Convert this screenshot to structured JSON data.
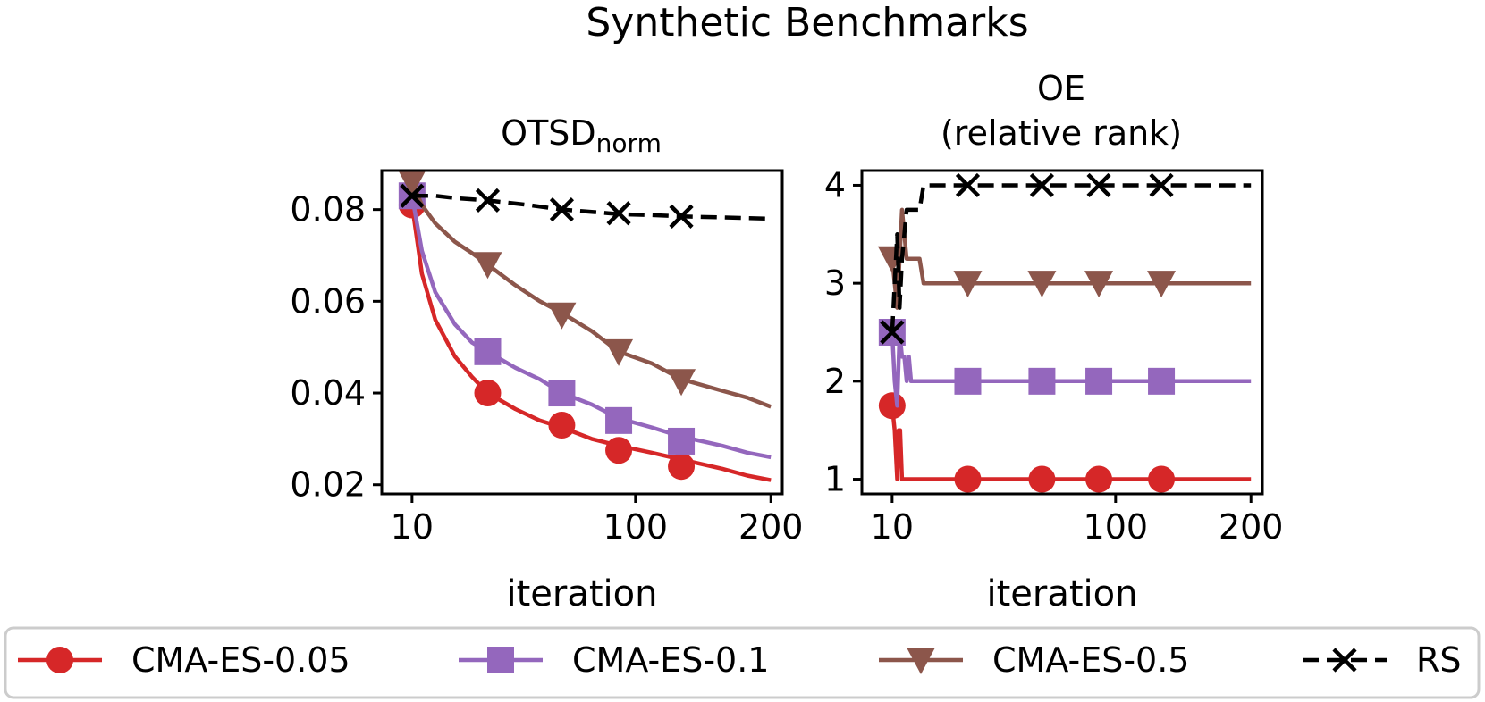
{
  "figure": {
    "title": "Synthetic Benchmarks"
  },
  "colors": {
    "CMA-ES-0.05": "#d62728",
    "CMA-ES-0.1": "#9467bd",
    "CMA-ES-0.5": "#8c564b",
    "RS": "#000000"
  },
  "legend": [
    {
      "label": "CMA-ES-0.05",
      "marker": "circle",
      "color": "#d62728",
      "dash": "solid"
    },
    {
      "label": "CMA-ES-0.1",
      "marker": "square",
      "color": "#9467bd",
      "dash": "solid"
    },
    {
      "label": "CMA-ES-0.5",
      "marker": "triangle-down",
      "color": "#8c564b",
      "dash": "solid"
    },
    {
      "label": "RS",
      "marker": "x",
      "color": "#000000",
      "dash": "dashed"
    }
  ],
  "chart_data": [
    {
      "type": "line",
      "title": "OTSD",
      "title_subscript": "norm",
      "xlabel": "iteration",
      "ylabel": "",
      "xscale": "sqrt",
      "xlim": [
        5,
        210
      ],
      "ylim": [
        0.018,
        0.0885
      ],
      "xticks": [
        10,
        100,
        200
      ],
      "xtick_labels": [
        "10",
        "100",
        "200"
      ],
      "yticks": [
        0.02,
        0.04,
        0.06,
        0.08
      ],
      "ytick_labels": [
        "0.02",
        "0.04",
        "0.06",
        "0.08"
      ],
      "series": [
        {
          "name": "CMA-ES-0.05",
          "x": [
            10,
            12,
            15,
            20,
            25,
            30,
            40,
            50,
            60,
            75,
            90,
            110,
            130,
            160,
            180,
            200
          ],
          "y": [
            0.081,
            0.066,
            0.056,
            0.048,
            0.0435,
            0.04,
            0.0365,
            0.034,
            0.0325,
            0.03,
            0.0285,
            0.027,
            0.0255,
            0.0235,
            0.022,
            0.021
          ],
          "markers_x": [
            10,
            30,
            60,
            90,
            130
          ],
          "markers_y": [
            0.081,
            0.04,
            0.033,
            0.0275,
            0.024
          ]
        },
        {
          "name": "CMA-ES-0.1",
          "x": [
            10,
            12,
            15,
            20,
            25,
            30,
            40,
            50,
            60,
            75,
            90,
            110,
            130,
            160,
            180,
            200
          ],
          "y": [
            0.083,
            0.071,
            0.062,
            0.055,
            0.051,
            0.049,
            0.0455,
            0.043,
            0.04,
            0.0375,
            0.0345,
            0.0325,
            0.0305,
            0.0285,
            0.027,
            0.026
          ],
          "markers_x": [
            10,
            30,
            60,
            90,
            130
          ],
          "markers_y": [
            0.083,
            0.049,
            0.04,
            0.034,
            0.0295
          ]
        },
        {
          "name": "CMA-ES-0.5",
          "x": [
            10,
            12,
            15,
            20,
            25,
            30,
            40,
            50,
            60,
            75,
            90,
            110,
            130,
            160,
            180,
            200
          ],
          "y": [
            0.086,
            0.081,
            0.077,
            0.073,
            0.0705,
            0.068,
            0.0635,
            0.06,
            0.0575,
            0.0535,
            0.049,
            0.0465,
            0.043,
            0.0405,
            0.039,
            0.037
          ],
          "markers_x": [
            10,
            30,
            60,
            90,
            130
          ],
          "markers_y": [
            0.086,
            0.068,
            0.057,
            0.049,
            0.0425
          ]
        },
        {
          "name": "RS",
          "x": [
            10,
            15,
            20,
            30,
            45,
            60,
            75,
            90,
            110,
            130,
            160,
            200
          ],
          "y": [
            0.083,
            0.083,
            0.0825,
            0.082,
            0.081,
            0.08,
            0.0795,
            0.079,
            0.0788,
            0.0785,
            0.0783,
            0.078
          ],
          "markers_x": [
            10,
            30,
            60,
            90,
            130
          ],
          "markers_y": [
            0.083,
            0.082,
            0.08,
            0.0792,
            0.0785
          ]
        }
      ]
    },
    {
      "type": "line",
      "title": "OE",
      "title_line2": "(relative rank)",
      "xlabel": "iteration",
      "ylabel": "",
      "xscale": "sqrt",
      "xlim": [
        5,
        210
      ],
      "ylim": [
        0.85,
        4.15
      ],
      "xticks": [
        10,
        100,
        200
      ],
      "xtick_labels": [
        "10",
        "100",
        "200"
      ],
      "yticks": [
        1,
        2,
        3,
        4
      ],
      "ytick_labels": [
        "1",
        "2",
        "3",
        "4"
      ],
      "series": [
        {
          "name": "CMA-ES-0.05",
          "x": [
            10,
            10.5,
            11,
            11.3,
            11.6,
            12,
            12.5,
            13,
            200
          ],
          "y": [
            1.75,
            1.5,
            1.0,
            1.5,
            1.5,
            1.0,
            1.0,
            1.0,
            1.0
          ],
          "markers_x": [
            10,
            30,
            60,
            90,
            130
          ],
          "markers_y": [
            1.75,
            1,
            1,
            1,
            1
          ]
        },
        {
          "name": "CMA-ES-0.1",
          "x": [
            10,
            10.5,
            11,
            11.5,
            12,
            12.5,
            13,
            13.5,
            14,
            200
          ],
          "y": [
            2.5,
            2.0,
            1.75,
            2.5,
            2.25,
            2.25,
            2.0,
            2.25,
            2.0,
            2.0
          ],
          "markers_x": [
            10,
            30,
            60,
            90,
            130
          ],
          "markers_y": [
            2.5,
            2,
            2,
            2,
            2
          ]
        },
        {
          "name": "CMA-ES-0.5",
          "x": [
            10,
            10.5,
            11,
            11.5,
            12,
            12.5,
            13,
            14,
            16,
            17,
            200
          ],
          "y": [
            3.25,
            3.0,
            2.75,
            3.25,
            3.75,
            3.5,
            3.25,
            3.25,
            3.25,
            3.0,
            3.0
          ],
          "markers_x": [
            10,
            30,
            60,
            90,
            130
          ],
          "markers_y": [
            3.25,
            3,
            3,
            3,
            3
          ]
        },
        {
          "name": "RS",
          "x": [
            10,
            10.5,
            11,
            11.5,
            12,
            12.5,
            13,
            14,
            16,
            17,
            18,
            200
          ],
          "y": [
            2.5,
            3.0,
            3.5,
            2.75,
            3.25,
            3.5,
            3.75,
            3.75,
            3.75,
            4.0,
            4.0,
            4.0
          ],
          "markers_x": [
            10,
            30,
            60,
            90,
            130
          ],
          "markers_y": [
            2.5,
            4,
            4,
            4,
            4
          ]
        }
      ]
    }
  ]
}
